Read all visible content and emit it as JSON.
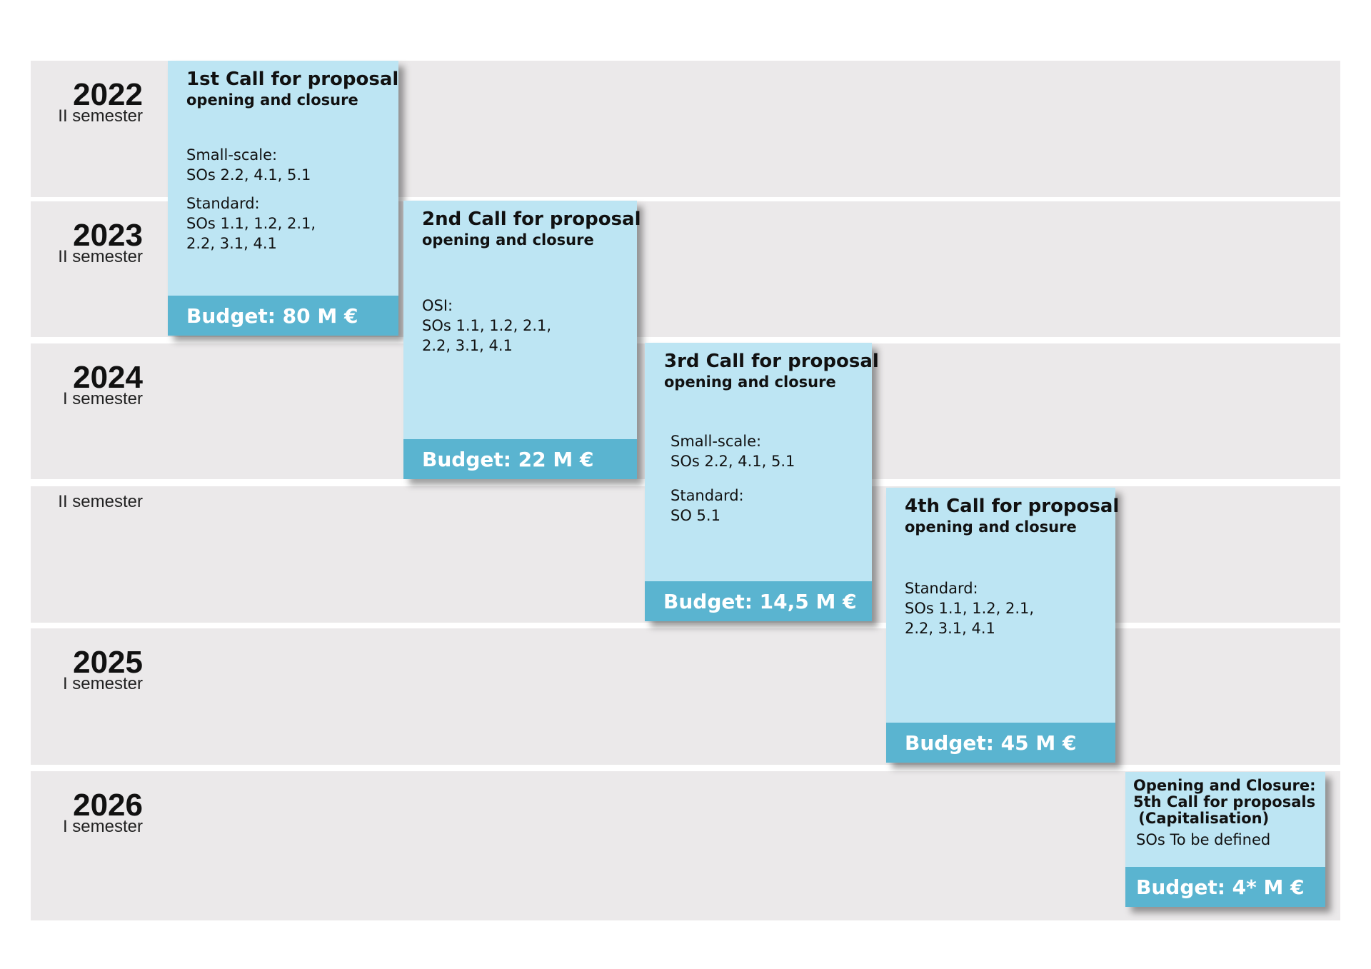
{
  "rows": [
    {
      "year": "2022",
      "semester": "II semester"
    },
    {
      "year": "2023",
      "semester": "II semester"
    },
    {
      "year": "2024",
      "semester": "I semester"
    },
    {
      "semester": "II semester"
    },
    {
      "year": "2025",
      "semester": "I semester"
    },
    {
      "year": "2026",
      "semester": "I semester"
    }
  ],
  "calls": [
    {
      "title": "1st Call for proposal",
      "subtitle": "opening and closure",
      "body": [
        [
          "Small-scale:",
          "SOs 2.2, 4.1, 5.1"
        ],
        [
          "Standard:",
          "SOs 1.1, 1.2, 2.1,",
          "2.2, 3.1, 4.1"
        ]
      ],
      "budget": "Budget: 80 M €"
    },
    {
      "title": "2nd Call for proposal",
      "subtitle": "opening and closure",
      "body": [
        [
          "OSI:",
          "SOs 1.1, 1.2, 2.1,",
          "2.2, 3.1, 4.1"
        ]
      ],
      "budget": "Budget: 22 M €"
    },
    {
      "title": "3rd Call for proposal",
      "subtitle": "opening and closure",
      "body": [
        [
          "Small-scale:",
          "SOs 2.2, 4.1, 5.1"
        ],
        [
          "Standard:",
          "SO 5.1"
        ]
      ],
      "budget": "Budget: 14,5 M €"
    },
    {
      "title": "4th Call for proposal",
      "subtitle": "opening and closure",
      "body": [
        [
          "Standard:",
          "SOs 1.1, 1.2, 2.1,",
          "2.2, 3.1, 4.1"
        ]
      ],
      "budget": "Budget: 45 M €"
    },
    {
      "heading": [
        "Opening and Closure:",
        "5th Call for proposals",
        " (Capitalisation)"
      ],
      "body": [
        [
          "SOs To be defined"
        ]
      ],
      "budget": "Budget: 4* M €"
    }
  ]
}
